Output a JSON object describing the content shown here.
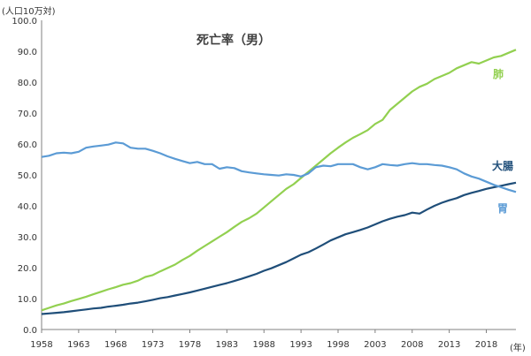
{
  "chart_data": {
    "type": "line",
    "title": "死亡率（男）",
    "ylabel": "(人口10万対)",
    "xlabel": "(年)",
    "ylim": [
      0,
      100
    ],
    "y_ticks": [
      "0.0",
      "10.0",
      "20.0",
      "30.0",
      "40.0",
      "50.0",
      "60.0",
      "70.0",
      "80.0",
      "90.0",
      "100.0"
    ],
    "x_ticks": [
      "1958",
      "1963",
      "1968",
      "1973",
      "1978",
      "1983",
      "1988",
      "1993",
      "1998",
      "2003",
      "2008",
      "2013",
      "2018"
    ],
    "x": [
      1958,
      1959,
      1960,
      1961,
      1962,
      1963,
      1964,
      1965,
      1966,
      1967,
      1968,
      1969,
      1970,
      1971,
      1972,
      1973,
      1974,
      1975,
      1976,
      1977,
      1978,
      1979,
      1980,
      1981,
      1982,
      1983,
      1984,
      1985,
      1986,
      1987,
      1988,
      1989,
      1990,
      1991,
      1992,
      1993,
      1994,
      1995,
      1996,
      1997,
      1998,
      1999,
      2000,
      2001,
      2002,
      2003,
      2004,
      2005,
      2006,
      2007,
      2008,
      2009,
      2010,
      2011,
      2012,
      2013,
      2014,
      2015,
      2016,
      2017,
      2018,
      2019,
      2020,
      2021,
      2022
    ],
    "series": [
      {
        "name": "肺",
        "color": "#92D050",
        "values": [
          6.2,
          7.0,
          7.8,
          8.4,
          9.2,
          9.9,
          10.6,
          11.4,
          12.2,
          13.0,
          13.7,
          14.5,
          15.0,
          15.8,
          17.0,
          17.6,
          18.8,
          19.9,
          21.0,
          22.5,
          23.8,
          25.5,
          27.0,
          28.5,
          30.0,
          31.5,
          33.2,
          34.8,
          36.0,
          37.5,
          39.5,
          41.5,
          43.5,
          45.5,
          47.0,
          49.0,
          51.0,
          53.0,
          55.0,
          57.0,
          58.8,
          60.5,
          62.0,
          63.2,
          64.5,
          66.5,
          67.8,
          71.0,
          73.0,
          75.0,
          77.0,
          78.5,
          79.5,
          81.0,
          82.0,
          83.0,
          84.5,
          85.5,
          86.5,
          86.0,
          87.0,
          88.0,
          88.5,
          89.5,
          90.5
        ]
      },
      {
        "name": "大腸",
        "color": "#1F4E79",
        "values": [
          5.0,
          5.2,
          5.4,
          5.6,
          5.9,
          6.2,
          6.5,
          6.8,
          7.0,
          7.4,
          7.7,
          8.0,
          8.4,
          8.7,
          9.1,
          9.6,
          10.1,
          10.5,
          11.0,
          11.5,
          12.0,
          12.6,
          13.2,
          13.8,
          14.4,
          15.0,
          15.7,
          16.4,
          17.2,
          18.0,
          19.0,
          19.8,
          20.8,
          21.8,
          23.0,
          24.2,
          25.0,
          26.2,
          27.5,
          28.8,
          29.8,
          30.8,
          31.5,
          32.2,
          33.0,
          34.0,
          35.0,
          35.8,
          36.5,
          37.0,
          37.8,
          37.5,
          38.8,
          40.0,
          41.0,
          41.8,
          42.5,
          43.5,
          44.2,
          44.8,
          45.5,
          46.0,
          46.5,
          47.0,
          47.5
        ]
      },
      {
        "name": "胃",
        "color": "#5B9BD5",
        "values": [
          55.8,
          56.2,
          57.0,
          57.2,
          57.0,
          57.5,
          58.8,
          59.2,
          59.5,
          59.8,
          60.5,
          60.2,
          58.8,
          58.5,
          58.5,
          57.8,
          57.0,
          56.0,
          55.2,
          54.5,
          53.8,
          54.2,
          53.5,
          53.5,
          52.0,
          52.5,
          52.2,
          51.2,
          50.8,
          50.5,
          50.2,
          50.0,
          49.8,
          50.2,
          50.0,
          49.5,
          50.5,
          52.5,
          53.0,
          52.8,
          53.5,
          53.5,
          53.5,
          52.5,
          51.8,
          52.5,
          53.5,
          53.2,
          53.0,
          53.5,
          53.8,
          53.5,
          53.5,
          53.2,
          53.0,
          52.5,
          51.8,
          50.5,
          49.5,
          48.8,
          47.8,
          46.8,
          46.0,
          45.2,
          44.5
        ]
      }
    ],
    "grid": false,
    "legend": "inline-right"
  }
}
